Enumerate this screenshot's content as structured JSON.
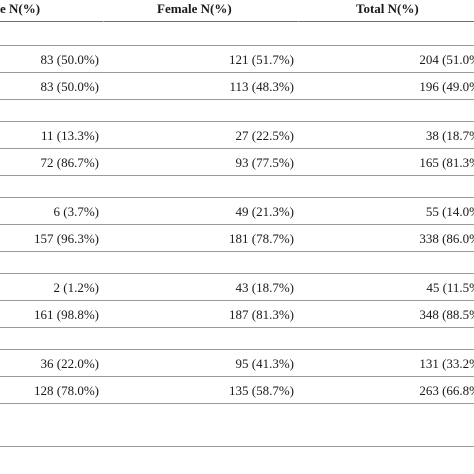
{
  "headers": {
    "col1": "e N(%)",
    "col2": "Female N(%)",
    "col3": "Total N(%)"
  },
  "groups": [
    {
      "rows": [
        {
          "c1": "83 (50.0%)",
          "c2": "121 (51.7%)",
          "c3": "204 (51.0%"
        },
        {
          "c1": "83 (50.0%)",
          "c2": "113 (48.3%)",
          "c3": "196 (49.0%"
        }
      ]
    },
    {
      "rows": [
        {
          "c1": "11 (13.3%)",
          "c2": "27 (22.5%)",
          "c3": "38 (18.7%"
        },
        {
          "c1": "72 (86.7%)",
          "c2": "93 (77.5%)",
          "c3": "165 (81.3%"
        }
      ]
    },
    {
      "rows": [
        {
          "c1": "6 (3.7%)",
          "c2": "49 (21.3%)",
          "c3": "55 (14.0%"
        },
        {
          "c1": "157 (96.3%)",
          "c2": "181 (78.7%)",
          "c3": "338 (86.0%"
        }
      ]
    },
    {
      "rows": [
        {
          "c1": "2 (1.2%)",
          "c2": "43 (18.7%)",
          "c3": "45 (11.5%"
        },
        {
          "c1": "161 (98.8%)",
          "c2": "187 (81.3%)",
          "c3": "348 (88.5%"
        }
      ]
    },
    {
      "rows": [
        {
          "c1": "36 (22.0%)",
          "c2": "95 (41.3%)",
          "c3": "131 (33.2%"
        },
        {
          "c1": "128 (78.0%)",
          "c2": "135 (58.7%)",
          "c3": "263 (66.8%"
        }
      ]
    }
  ]
}
